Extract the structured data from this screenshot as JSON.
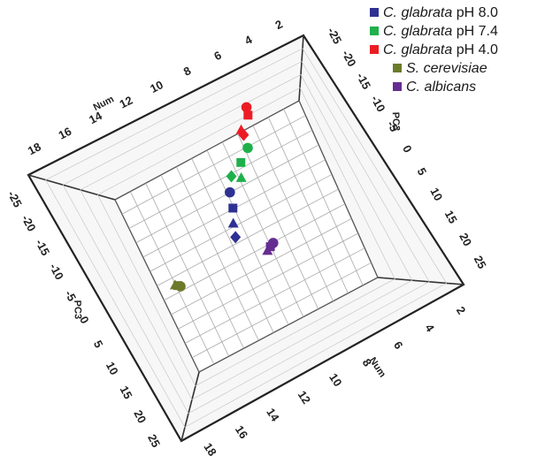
{
  "chart_data": {
    "type": "scatter",
    "projection": "3d",
    "legend": {
      "placement": "top-right",
      "entries": [
        {
          "species": "C. glabrata",
          "condition": "pH 8.0",
          "color": "#2e3192"
        },
        {
          "species": "C. glabrata",
          "condition": "pH 7.4",
          "color": "#1fb04b"
        },
        {
          "species": "C. glabrata",
          "condition": "pH 4.0",
          "color": "#ed1c24"
        },
        {
          "species": "S. cerevisiae",
          "condition": "",
          "color": "#6b7b2a"
        },
        {
          "species": "C. albicans",
          "condition": "",
          "color": "#662d91"
        }
      ]
    },
    "axes": {
      "x": {
        "label": "Num",
        "ticks": [
          "2",
          "4",
          "6",
          "8",
          "10",
          "12",
          "14",
          "16",
          "18"
        ]
      },
      "y": {
        "label": "Num",
        "ticks": [
          "2",
          "4",
          "6",
          "8",
          "10",
          "12",
          "14",
          "16",
          "18"
        ]
      },
      "z": {
        "label": "PC3",
        "ticks": [
          "-25",
          "-20",
          "-15",
          "-10",
          "-5",
          "0",
          "5",
          "10",
          "15",
          "20",
          "25"
        ]
      }
    },
    "grid": true,
    "series": [
      {
        "name": "C. glabrata pH 8.0",
        "color": "#2e3192",
        "points": [
          {
            "marker": "circle",
            "x": 0.51,
            "y": 0.25
          },
          {
            "marker": "square",
            "x": 0.49,
            "y": 0.33
          },
          {
            "marker": "triangle",
            "x": 0.46,
            "y": 0.4
          },
          {
            "marker": "diamond",
            "x": 0.44,
            "y": 0.47
          }
        ]
      },
      {
        "name": "C. glabrata pH 7.4",
        "color": "#1fb04b",
        "points": [
          {
            "marker": "diamond",
            "x": 0.55,
            "y": 0.18
          },
          {
            "marker": "square",
            "x": 0.62,
            "y": 0.14
          },
          {
            "marker": "triangle",
            "x": 0.59,
            "y": 0.21
          },
          {
            "marker": "circle",
            "x": 0.68,
            "y": 0.09
          }
        ]
      },
      {
        "name": "C. glabrata pH 4.0",
        "color": "#ed1c24",
        "points": [
          {
            "marker": "diamond",
            "x": 0.69,
            "y": 0.02
          },
          {
            "marker": "triangle",
            "x": 0.69,
            "y": -0.01
          },
          {
            "marker": "square",
            "x": 0.75,
            "y": -0.06
          },
          {
            "marker": "circle",
            "x": 0.76,
            "y": -0.1
          }
        ]
      },
      {
        "name": "S. cerevisiae",
        "color": "#6b7b2a",
        "points": [
          {
            "marker": "triangle",
            "x": 0.08,
            "y": 0.54
          },
          {
            "marker": "square",
            "x": 0.09,
            "y": 0.55
          },
          {
            "marker": "circle",
            "x": 0.1,
            "y": 0.56
          }
        ]
      },
      {
        "name": "C. albicans",
        "color": "#662d91",
        "points": [
          {
            "marker": "circle",
            "x": 0.59,
            "y": 0.59
          },
          {
            "marker": "square",
            "x": 0.57,
            "y": 0.6
          },
          {
            "marker": "triangle",
            "x": 0.55,
            "y": 0.61
          }
        ]
      }
    ]
  }
}
